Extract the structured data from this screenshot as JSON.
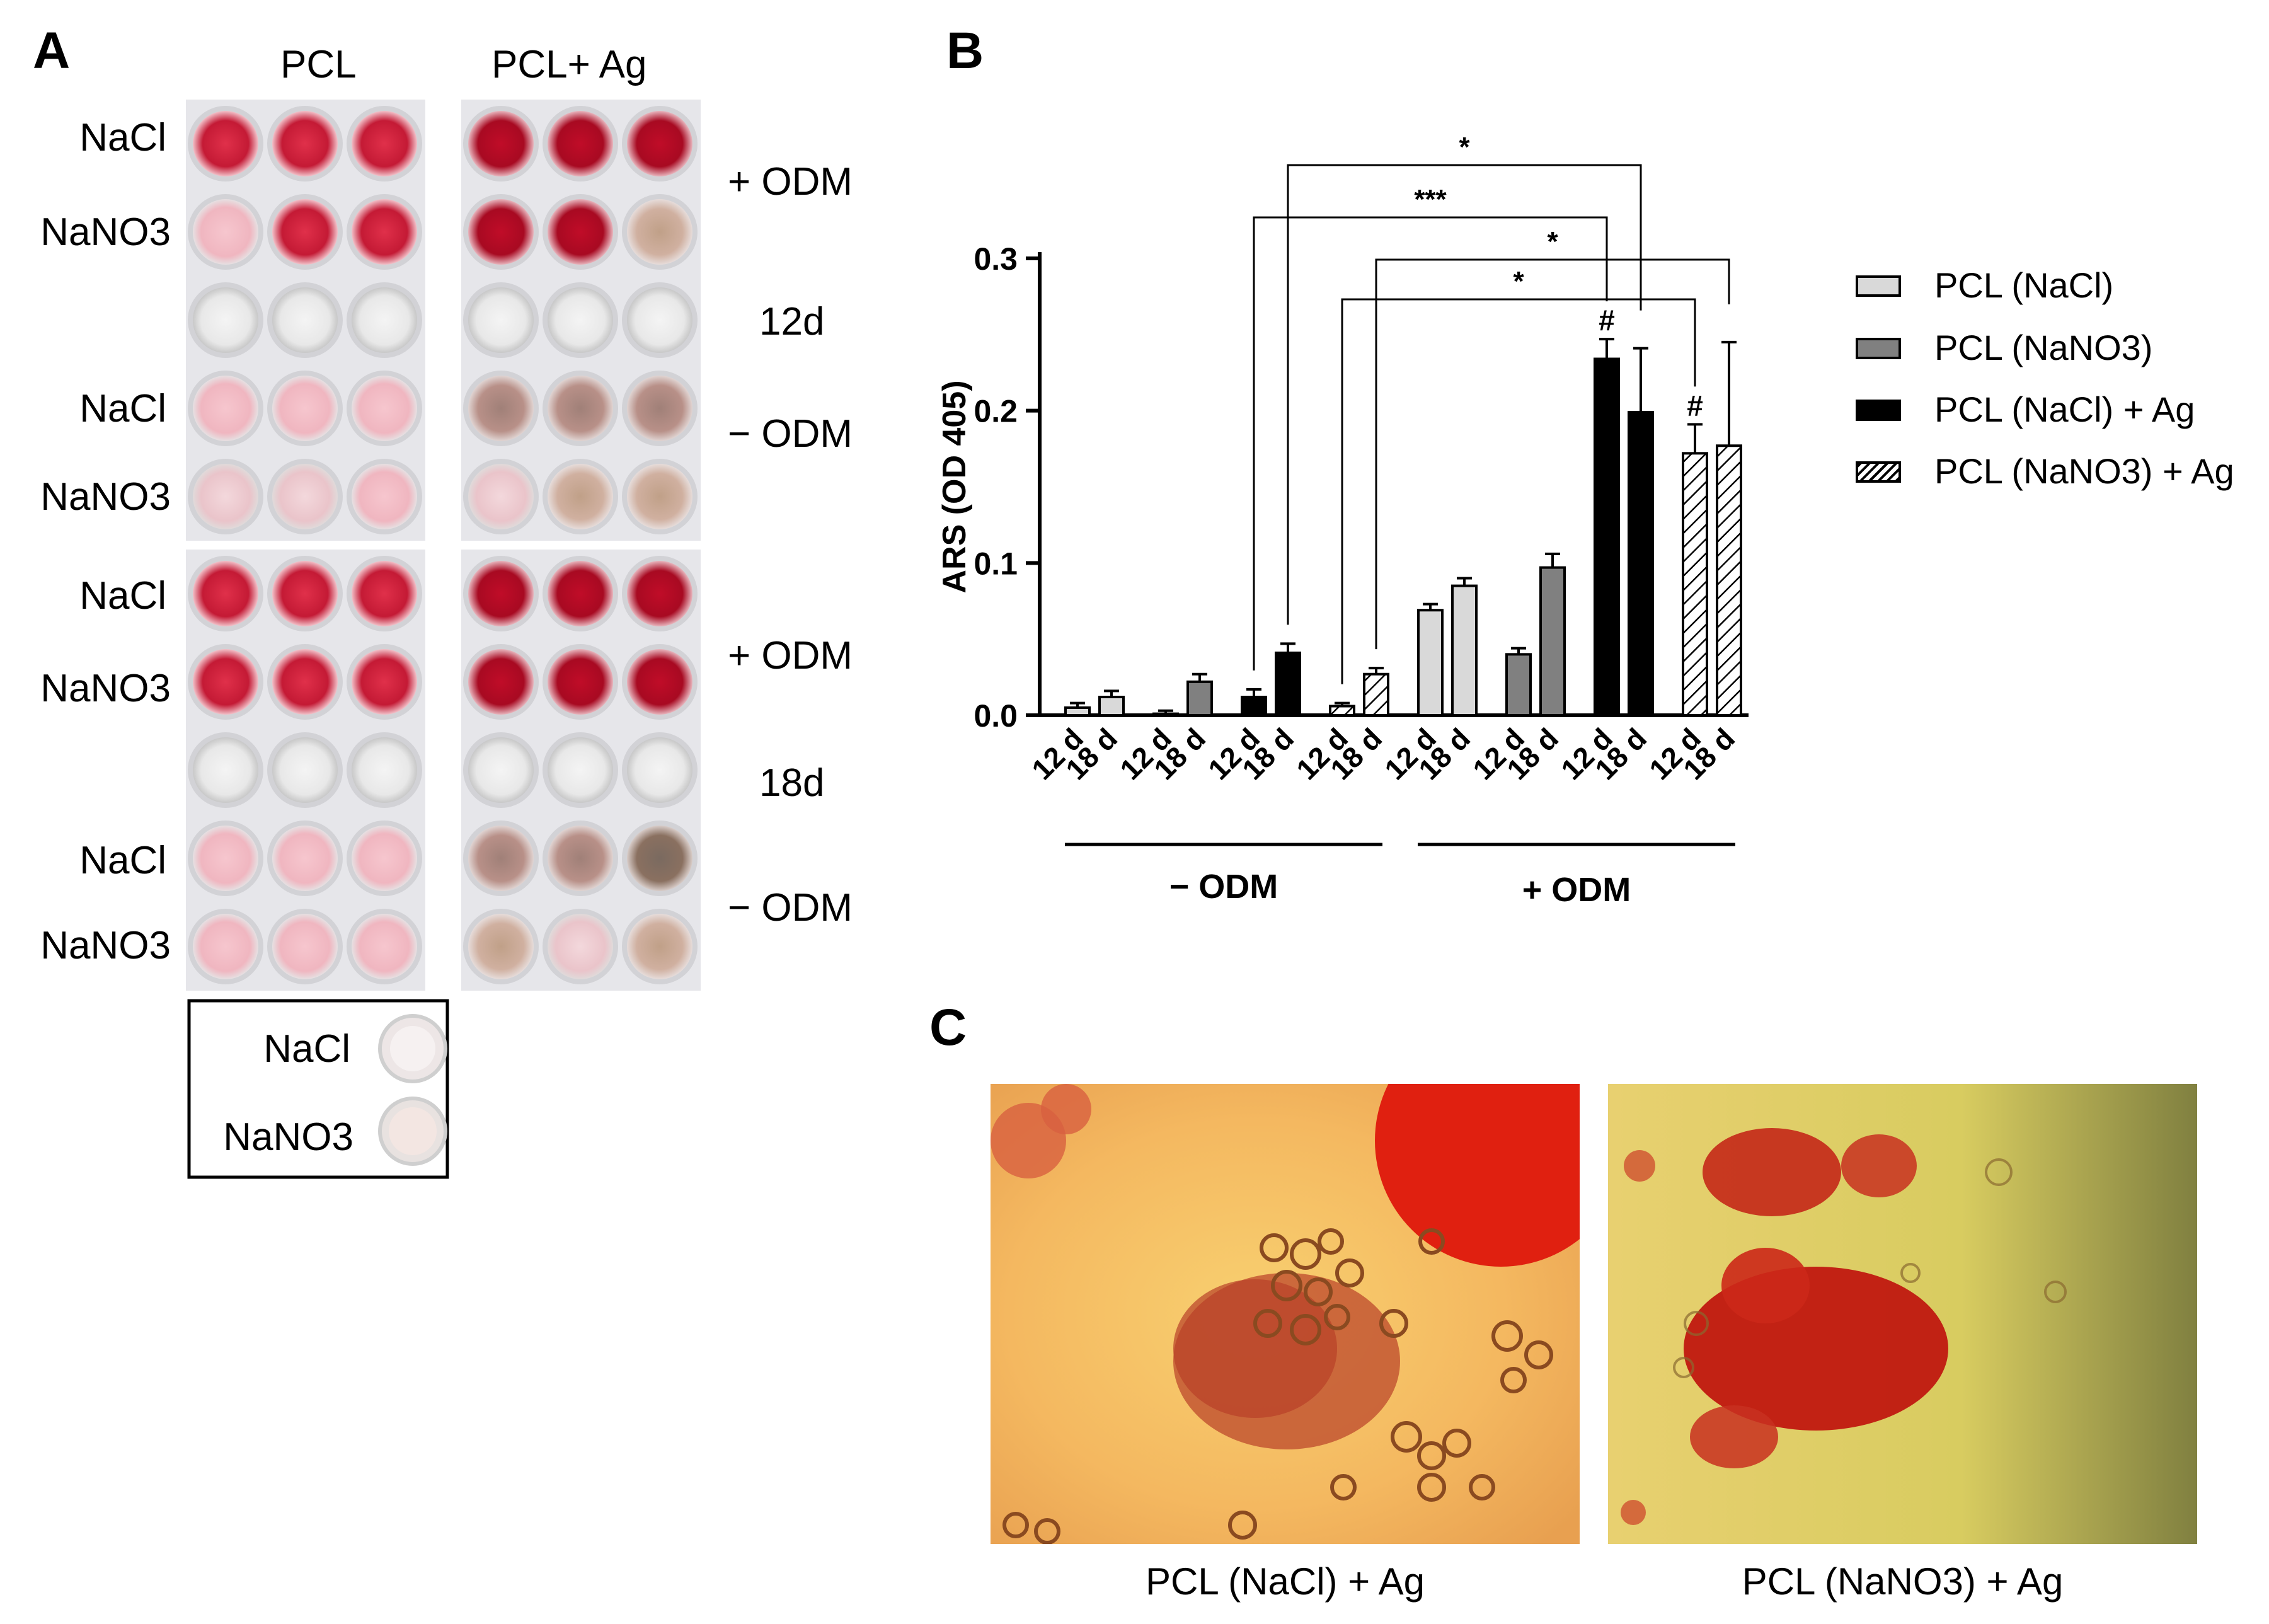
{
  "panel_a": {
    "letter": "A",
    "columns": [
      "PCL",
      "PCL+ Ag"
    ],
    "row_labels_12d": [
      "NaCl",
      "NaNO3",
      "NaCl",
      "NaNO3"
    ],
    "row_labels_18d": [
      "NaCl",
      "NaNO3",
      "NaCl",
      "NaNO3"
    ],
    "side_labels_12d": [
      "+ ODM",
      "12d",
      "− ODM"
    ],
    "side_labels_18d": [
      "+ ODM",
      "18d",
      "− ODM"
    ],
    "inset_labels": [
      "NaCl",
      "NaNO3"
    ]
  },
  "panel_b": {
    "letter": "B",
    "legend": [
      {
        "label": "PCL (NaCl)",
        "fill": "#d9d9d9"
      },
      {
        "label": "PCL (NaNO3)",
        "fill": "#808080"
      },
      {
        "label": "PCL (NaCl) + Ag",
        "fill": "#000000"
      },
      {
        "label": "PCL (NaNO3) + Ag",
        "fill": "hatched"
      }
    ],
    "group_labels": [
      "− ODM",
      "+ ODM"
    ],
    "sig_marks": [
      "*",
      "***",
      "*",
      "*"
    ],
    "hash_mark": "#"
  },
  "chart_data": {
    "type": "bar",
    "ylabel": "ARS (OD 405)",
    "xlabel": "",
    "ylim": [
      0,
      0.3
    ],
    "yticks": [
      "0.0",
      "0.1",
      "0.2",
      "0.3"
    ],
    "categories": [
      "12 d",
      "18 d",
      "12 d",
      "18 d",
      "12 d",
      "18 d",
      "12 d",
      "18 d",
      "12 d",
      "18 d",
      "12 d",
      "18 d",
      "12 d",
      "18 d",
      "12 d",
      "18 d"
    ],
    "values": [
      0.005,
      0.012,
      0.001,
      0.022,
      0.012,
      0.041,
      0.006,
      0.027,
      0.069,
      0.085,
      0.04,
      0.097,
      0.234,
      0.199,
      0.172,
      0.177
    ],
    "errors": [
      0.003,
      0.004,
      0.002,
      0.005,
      0.005,
      0.006,
      0.002,
      0.004,
      0.004,
      0.005,
      0.004,
      0.009,
      0.013,
      0.042,
      0.019,
      0.068
    ],
    "conditions": [
      "PCL (NaCl)",
      "PCL (NaCl)",
      "PCL (NaNO3)",
      "PCL (NaNO3)",
      "PCL (NaCl) + Ag",
      "PCL (NaCl) + Ag",
      "PCL (NaNO3) + Ag",
      "PCL (NaNO3) + Ag",
      "PCL (NaCl)",
      "PCL (NaCl)",
      "PCL (NaNO3)",
      "PCL (NaNO3)",
      "PCL (NaCl) + Ag",
      "PCL (NaCl) + Ag",
      "PCL (NaNO3) + Ag",
      "PCL (NaNO3) + Ag"
    ],
    "groups": [
      "− ODM",
      "+ ODM"
    ],
    "significance": [
      {
        "from": 5,
        "to": 13,
        "label": "*"
      },
      {
        "from": 4,
        "to": 12,
        "label": "***"
      },
      {
        "from": 7,
        "to": 15,
        "label": "*"
      },
      {
        "from": 6,
        "to": 14,
        "label": "*"
      }
    ],
    "hash_on": [
      12,
      14
    ]
  },
  "panel_c": {
    "letter": "C",
    "captions": [
      "PCL (NaCl) + Ag",
      "PCL (NaNO3) + Ag"
    ]
  },
  "colors": {
    "stain_red": "#c8102e",
    "pale_pink": "#f2c4cc",
    "micro_bg_left": "#f5c060",
    "micro_bg_right": "#d8c860"
  }
}
